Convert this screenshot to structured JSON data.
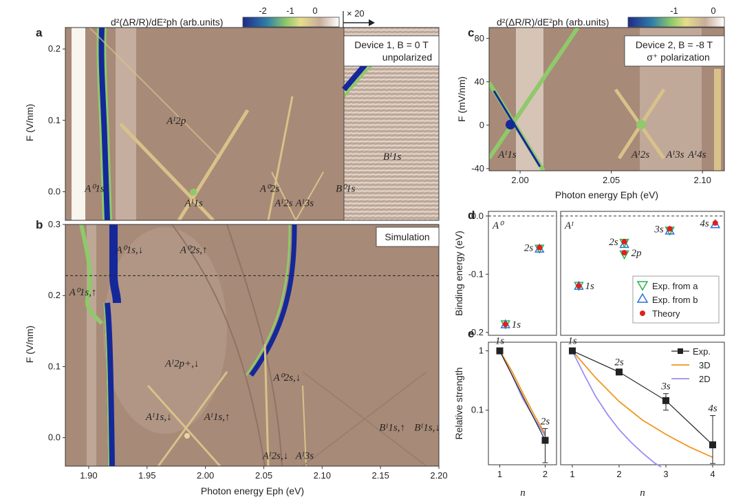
{
  "panel_letters": [
    "a",
    "b",
    "c",
    "d",
    "e"
  ],
  "colorbar_a": {
    "label": "d²(ΔR/R)/dE²ph (arb.units)",
    "ticks": [
      "-2",
      "-1",
      "0"
    ],
    "multiplier": "× 20"
  },
  "colorbar_c": {
    "label": "d²(ΔR/R)/dE²ph (arb.units)",
    "ticks": [
      "-1",
      "0"
    ]
  },
  "colors": {
    "background_map": "#a88a78",
    "line_light": "#d9c28a",
    "line_green": "#8fc96a",
    "deep_blue": "#14289a",
    "white_band": "#f8f4ee",
    "theory_red": "#e0201c",
    "exp_a_green": "#27b24a",
    "exp_b_blue": "#2b6fd8",
    "orange_3d": "#f0961e",
    "purple_2d": "#9a8ef0"
  },
  "chart_data": [
    {
      "id": "a",
      "type": "heatmap",
      "title_box": [
        "Device 1, B = 0 T",
        "unpolarized"
      ],
      "ylabel": "F (V/nm)",
      "ylim": [
        -0.04,
        0.23
      ],
      "yticks": [
        "0.0",
        "0.1",
        "0.2"
      ],
      "xlim": [
        1.88,
        2.2
      ],
      "annotations": [
        {
          "text": "A⁰1s",
          "x": 1.905,
          "y": 0.0
        },
        {
          "text": "Aᴵ2p",
          "x": 1.975,
          "y": 0.095
        },
        {
          "text": "Aᴵ1s",
          "x": 1.99,
          "y": -0.02
        },
        {
          "text": "A⁰2s",
          "x": 2.055,
          "y": 0.0
        },
        {
          "text": "Aᴵ2s",
          "x": 2.067,
          "y": -0.02
        },
        {
          "text": "Aᴵ3s",
          "x": 2.085,
          "y": -0.02
        },
        {
          "text": "B⁰1s",
          "x": 2.12,
          "y": 0.0
        },
        {
          "text": "Bᴵ1s",
          "x": 2.16,
          "y": 0.045
        }
      ]
    },
    {
      "id": "b",
      "type": "heatmap",
      "title_box": [
        "Simulation"
      ],
      "xlabel": "Photon energy Eph (eV)",
      "ylabel": "F (V/nm)",
      "ylim": [
        -0.04,
        0.3
      ],
      "yticks": [
        "0.0",
        "0.1",
        "0.2",
        "0.3"
      ],
      "xlim": [
        1.88,
        2.2
      ],
      "xticks": [
        "1.90",
        "1.95",
        "2.00",
        "2.05",
        "2.10",
        "2.15",
        "2.20"
      ],
      "dashed_y": 0.228,
      "annotations": [
        {
          "text": "A⁰1s,↓",
          "x": 1.935,
          "y": 0.26
        },
        {
          "text": "A⁰2s,↑",
          "x": 1.99,
          "y": 0.26
        },
        {
          "text": "A⁰1s,↑",
          "x": 1.895,
          "y": 0.2
        },
        {
          "text": "Aᴵ2p+,↓",
          "x": 1.98,
          "y": 0.1
        },
        {
          "text": "A⁰2s,↓",
          "x": 2.07,
          "y": 0.08
        },
        {
          "text": "Aᴵ1s,↓",
          "x": 1.96,
          "y": 0.025
        },
        {
          "text": "Aᴵ1s,↑",
          "x": 2.01,
          "y": 0.025
        },
        {
          "text": "Bᴵ1s,↑",
          "x": 2.16,
          "y": 0.01
        },
        {
          "text": "Bᴵ1s,↓",
          "x": 2.19,
          "y": 0.01
        },
        {
          "text": "Aᴵ2s,↓",
          "x": 2.06,
          "y": -0.03
        },
        {
          "text": "Aᴵ3s",
          "x": 2.085,
          "y": -0.03
        }
      ]
    },
    {
      "id": "c",
      "type": "heatmap",
      "title_box": [
        "Device 2, B = -8 T",
        "σ⁺ polarization"
      ],
      "xlabel": "Photon energy Eph (eV)",
      "ylabel": "F (mV/nm)",
      "ylim": [
        -42,
        90
      ],
      "yticks": [
        "-40",
        "0",
        "40",
        "80"
      ],
      "xlim": [
        1.983,
        2.112
      ],
      "xticks": [
        "2.00",
        "2.05",
        "2.10"
      ],
      "annotations": [
        {
          "text": "Aᴵ1s",
          "x": 1.993,
          "y": -30
        },
        {
          "text": "Aᴵ2s",
          "x": 2.066,
          "y": -30
        },
        {
          "text": "Aᴵ3s",
          "x": 2.085,
          "y": -30
        },
        {
          "text": "Aᴵ4s",
          "x": 2.097,
          "y": -30
        }
      ]
    },
    {
      "id": "d",
      "type": "scatter",
      "ylabel": "Binding energy (eV)",
      "ylim": [
        -0.205,
        0.008
      ],
      "yticks": [
        "0.0",
        "-0.1",
        "-0.2"
      ],
      "subpanels": [
        {
          "label": "A⁰",
          "points": [
            {
              "state": "1s",
              "x": 1,
              "exp_a": -0.186,
              "exp_b": -0.186,
              "theory": -0.186
            },
            {
              "state": "2s",
              "x": 2,
              "exp_a": -0.056,
              "exp_b": -0.056,
              "theory": -0.054
            }
          ]
        },
        {
          "label": "Aᴵ",
          "points": [
            {
              "state": "1s",
              "x": 1,
              "exp_a": -0.12,
              "exp_b": -0.12,
              "theory": -0.12
            },
            {
              "state": "2s",
              "x": 2,
              "exp_a": -0.046,
              "exp_b": -0.048,
              "theory": -0.044
            },
            {
              "state": "2p",
              "x": 2,
              "exp_a": -0.066,
              "exp_b": null,
              "theory": -0.063
            },
            {
              "state": "3s",
              "x": 3,
              "exp_a": -0.025,
              "exp_b": -0.025,
              "theory": -0.022
            },
            {
              "state": "4s",
              "x": 4,
              "exp_a": null,
              "exp_b": -0.014,
              "theory": -0.012
            }
          ]
        }
      ],
      "legend": [
        "Exp. from a",
        "Exp. from b",
        "Theory"
      ]
    },
    {
      "id": "e",
      "type": "line",
      "xlabel": "n",
      "ylabel": "Relative strength",
      "yscale": "log",
      "ylim": [
        0.012,
        1.4
      ],
      "yticks": [
        "1",
        "0.1"
      ],
      "subpanels": [
        {
          "x": [
            1,
            2
          ],
          "xticks": [
            "1",
            "2"
          ],
          "exp": [
            1.0,
            0.031
          ],
          "exp_err": [
            0.0,
            0.018
          ],
          "labels": [
            "1s",
            "2s"
          ],
          "series": [
            {
              "name": "2D",
              "x": [
                1,
                1.25,
                1.5,
                1.75,
                2
              ],
              "values": [
                1.0,
                0.42,
                0.16,
                0.075,
                0.037
              ]
            },
            {
              "name": "3D",
              "x": [
                1,
                1.25,
                1.5,
                1.75,
                2
              ],
              "values": [
                1.0,
                0.48,
                0.2,
                0.085,
                0.04
              ]
            }
          ]
        },
        {
          "x": [
            1,
            2,
            3,
            4
          ],
          "xticks": [
            "1",
            "2",
            "3",
            "4"
          ],
          "exp": [
            1.0,
            0.44,
            0.145,
            0.026
          ],
          "exp_err": [
            0.0,
            0.0,
            0.045,
            0.055
          ],
          "labels": [
            "1s",
            "2s",
            "3s",
            "4s"
          ],
          "series": [
            {
              "name": "3D",
              "x": [
                1,
                1.5,
                2,
                2.5,
                3,
                3.5,
                4
              ],
              "values": [
                1.0,
                0.35,
                0.14,
                0.068,
                0.039,
                0.024,
                0.016
              ]
            },
            {
              "name": "2D",
              "x": [
                1,
                1.25,
                1.5,
                1.75,
                2,
                2.25,
                2.5,
                2.75,
                2.9
              ],
              "values": [
                1.0,
                0.4,
                0.17,
                0.085,
                0.047,
                0.029,
                0.019,
                0.013,
                0.011
              ]
            }
          ],
          "legend": [
            "Exp.",
            "3D",
            "2D"
          ]
        }
      ]
    }
  ]
}
